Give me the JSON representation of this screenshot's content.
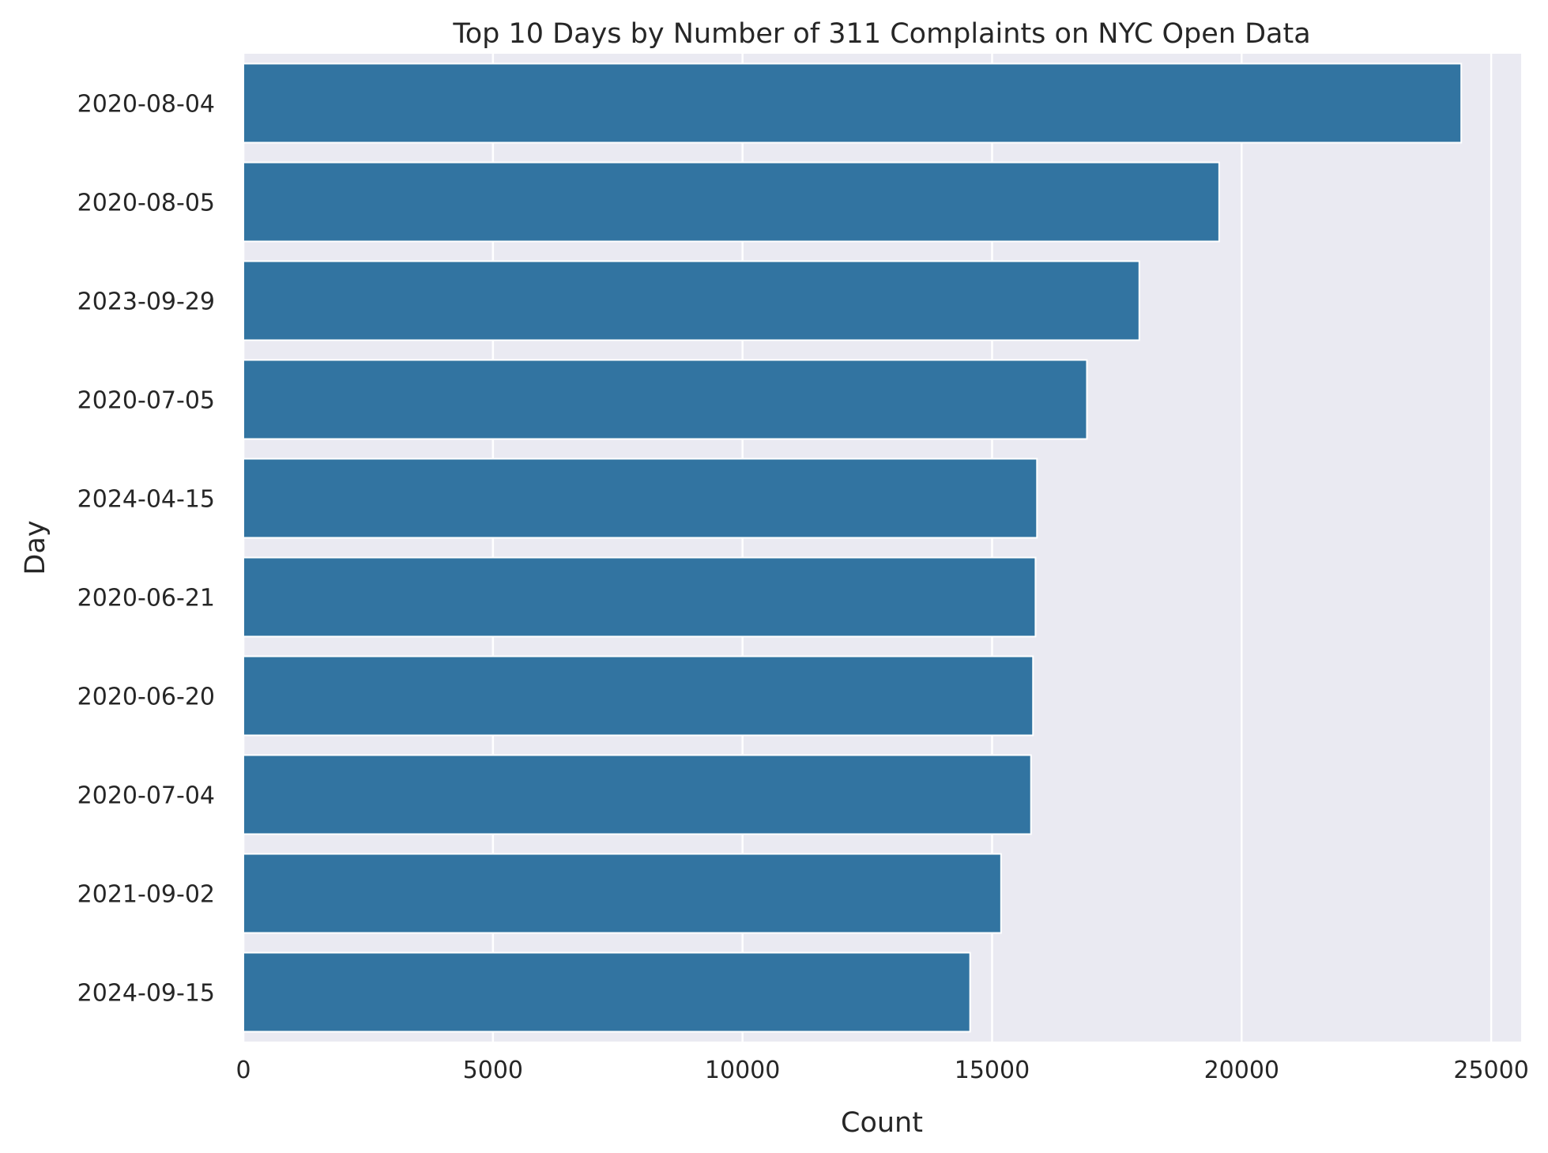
{
  "chart_data": {
    "type": "bar",
    "orientation": "horizontal",
    "title": "Top 10 Days by Number of 311 Complaints on NYC Open Data",
    "xlabel": "Count",
    "ylabel": "Day",
    "categories": [
      "2020-08-04",
      "2020-08-05",
      "2023-09-29",
      "2020-07-05",
      "2024-04-15",
      "2020-06-21",
      "2020-06-20",
      "2020-07-04",
      "2021-09-02",
      "2024-09-15"
    ],
    "values": [
      24400,
      19550,
      17950,
      16900,
      15900,
      15870,
      15820,
      15780,
      15180,
      14560
    ],
    "xlim": [
      0,
      25600
    ],
    "xticks": [
      0,
      5000,
      10000,
      15000,
      20000,
      25000
    ],
    "xtick_labels": [
      "0",
      "5000",
      "10000",
      "15000",
      "20000",
      "25000"
    ],
    "grid": true,
    "colors": {
      "bar": "#3274a1",
      "background": "#eaeaf2",
      "grid": "#ffffff",
      "text": "#262626"
    }
  }
}
